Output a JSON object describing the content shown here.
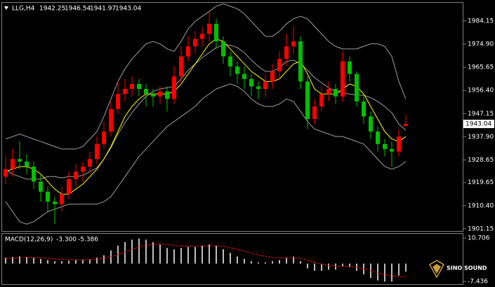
{
  "chart_data": [
    {
      "type": "candlestick",
      "title": "LLG,H4",
      "up_color": "#ff0000",
      "down_color": "#00c000",
      "ylim": [
        1900.0,
        1991.4
      ],
      "yticks": [
        1984.15,
        {
          "value": 1974.9,
          "label": "1974.90"
        },
        {
          "value": 1965.65,
          "label": "1965.65"
        },
        {
          "value": 1956.4,
          "label": "1956.40"
        },
        {
          "value": 1947.15,
          "label": "1947.15"
        },
        {
          "value": 1937.9,
          "label": "1937.90"
        },
        {
          "value": 1928.65,
          "label": "1928.65"
        },
        {
          "value": 1919.65,
          "label": "1919.65"
        },
        {
          "value": 1910.4,
          "label": "1910.40"
        },
        {
          "value": 1901.15,
          "label": "1901.15"
        }
      ],
      "open": [
        1922,
        1925,
        1929,
        1928,
        1926,
        1920,
        1916,
        1912,
        1911,
        1915,
        1921,
        1924,
        1926,
        1929,
        1935,
        1940,
        1949,
        1955,
        1957,
        1959,
        1957,
        1955,
        1954,
        1956,
        1953,
        1962,
        1970,
        1974,
        1977,
        1979,
        1983,
        1976,
        1970,
        1966,
        1963,
        1961,
        1958,
        1957,
        1960,
        1964,
        1969,
        1974,
        1976,
        1960,
        1945,
        1950,
        1955,
        1957,
        1954,
        1968,
        1963,
        1952,
        1946,
        1940,
        1935,
        1933,
        1932,
        1942.25
      ],
      "high": [
        1930,
        1933,
        1936,
        1931,
        1928,
        1923,
        1918,
        1914,
        1918,
        1924,
        1927,
        1928,
        1932,
        1938,
        1944,
        1952,
        1960,
        1961,
        1962,
        1961,
        1959,
        1957,
        1958,
        1958,
        1966,
        1974,
        1978,
        1980,
        1982,
        1988,
        1985,
        1978,
        1972,
        1968,
        1966,
        1963,
        1960,
        1963,
        1967,
        1972,
        1979,
        1982,
        1978,
        1962,
        1953,
        1958,
        1960,
        1959,
        1972,
        1970,
        1964,
        1954,
        1948,
        1942,
        1937,
        1936,
        1941,
        1946.54
      ],
      "low": [
        1919,
        1922,
        1925,
        1923,
        1917,
        1912,
        1908,
        1903,
        1908,
        1913,
        1918,
        1920,
        1923,
        1927,
        1933,
        1938,
        1947,
        1952,
        1954,
        1954,
        1950,
        1950,
        1951,
        1948,
        1951,
        1959,
        1968,
        1971,
        1974,
        1976,
        1973,
        1967,
        1962,
        1959,
        1957,
        1954,
        1953,
        1954,
        1957,
        1961,
        1966,
        1971,
        1957,
        1941,
        1943,
        1948,
        1952,
        1951,
        1952,
        1960,
        1950,
        1943,
        1937,
        1932,
        1930,
        1926,
        1930,
        1941.97
      ],
      "close": [
        1925,
        1929,
        1928,
        1926,
        1920,
        1916,
        1912,
        1911,
        1915,
        1921,
        1924,
        1926,
        1929,
        1935,
        1940,
        1949,
        1955,
        1957,
        1959,
        1957,
        1955,
        1954,
        1956,
        1953,
        1962,
        1970,
        1974,
        1977,
        1979,
        1983,
        1976,
        1970,
        1966,
        1963,
        1961,
        1958,
        1957,
        1960,
        1964,
        1969,
        1974,
        1976,
        1960,
        1945,
        1950,
        1955,
        1957,
        1954,
        1968,
        1963,
        1952,
        1946,
        1940,
        1935,
        1933,
        1932,
        1938,
        1943.04
      ],
      "series": [
        {
          "color": "#a0a0a0",
          "values": [
            1937,
            1938,
            1939,
            1938,
            1937,
            1936,
            1935,
            1934,
            1933,
            1933,
            1933,
            1934,
            1937,
            1940,
            1946,
            1953,
            1960,
            1965,
            1969,
            1972,
            1975,
            1976,
            1975,
            1973,
            1972,
            1976,
            1981,
            1984,
            1986,
            1988,
            1990,
            1991,
            1990,
            1989,
            1987,
            1984,
            1981,
            1978,
            1978,
            1980,
            1983,
            1985,
            1986,
            1985,
            1982,
            1979,
            1976,
            1974,
            1973,
            1973,
            1973,
            1974,
            1975,
            1975,
            1974,
            1970,
            1960,
            1953
          ]
        },
        {
          "color": "#a0a0a0",
          "values": [
            1925,
            1923,
            1922,
            1921,
            1921,
            1921,
            1922,
            1922,
            1921.5,
            1922,
            1922,
            1922.5,
            1924,
            1925.5,
            1929,
            1933.5,
            1939,
            1943.5,
            1947.5,
            1951,
            1954,
            1956,
            1957,
            1957.5,
            1958,
            1961,
            1964.5,
            1967,
            1969.5,
            1971.5,
            1973.5,
            1974.5,
            1974.5,
            1973.5,
            1971.5,
            1968.5,
            1966,
            1964,
            1964,
            1965.5,
            1968,
            1968.5,
            1967,
            1964.5,
            1961.5,
            1959.5,
            1957.5,
            1956,
            1955.5,
            1955,
            1954.5,
            1954.5,
            1953.5,
            1952,
            1950,
            1947.5,
            1943,
            1940.5
          ]
        },
        {
          "color": "#a0a0a0",
          "values": [
            1912,
            1908,
            1904,
            1903,
            1904,
            1906,
            1908,
            1909,
            1910,
            1911,
            1911,
            1911,
            1911,
            1911,
            1912,
            1914,
            1918,
            1922,
            1926,
            1930,
            1933,
            1936,
            1939,
            1942,
            1944,
            1946,
            1948,
            1950,
            1953,
            1955,
            1957,
            1958,
            1959,
            1958,
            1956,
            1953,
            1951,
            1950,
            1950,
            1951,
            1953,
            1952,
            1948,
            1944,
            1941,
            1940,
            1939,
            1938,
            1938,
            1937,
            1936,
            1935,
            1932,
            1929,
            1926,
            1925,
            1926,
            1928
          ]
        },
        {
          "color": "#ffff00",
          "values": [
            1924,
            1925,
            1926,
            1926,
            1925,
            1923,
            1920,
            1917,
            1915,
            1915,
            1917,
            1919,
            1922,
            1925,
            1929,
            1934,
            1940,
            1946,
            1950,
            1953,
            1955,
            1955,
            1955,
            1955,
            1956,
            1959,
            1963,
            1967,
            1971,
            1975,
            1977,
            1976,
            1973,
            1970,
            1967,
            1964,
            1962,
            1960,
            1960,
            1961,
            1964,
            1967,
            1968,
            1963,
            1957,
            1955,
            1955,
            1955,
            1957,
            1959,
            1958,
            1955,
            1950,
            1945,
            1940,
            1937,
            1936,
            1938
          ]
        }
      ],
      "watermark": "SINO SOUND"
    },
    {
      "type": "macd",
      "title": "MACD(12,26,9)",
      "ylim": [
        -8.31,
        12.46
      ],
      "yticks": [
        10.706,
        -7.436
      ],
      "series": [
        {
          "color": "#ffffff",
          "values": [
            2.5,
            2.8,
            3.0,
            2.8,
            2.5,
            2.0,
            1.5,
            1.0,
            1.0,
            1.2,
            1.5,
            1.6,
            1.8,
            2.5,
            3.5,
            5.5,
            7.5,
            9.0,
            10.0,
            10.5,
            10.0,
            9.0,
            8.0,
            6.5,
            6.0,
            6.5,
            7.0,
            7.0,
            7.5,
            8.0,
            7.5,
            6.0,
            4.5,
            3.0,
            2.0,
            1.0,
            0.5,
            0.5,
            1.0,
            1.5,
            2.5,
            3.0,
            1.0,
            -2.0,
            -3.0,
            -3.0,
            -2.5,
            -2.5,
            -1.0,
            -1.5,
            -3.0,
            -4.5,
            -6.0,
            -7.0,
            -7.5,
            -7.5,
            -5.0,
            -3.3
          ],
          "value_labels": [
            null,
            null,
            null,
            null,
            null,
            null,
            null,
            null,
            null,
            null,
            null,
            null,
            null,
            null,
            null,
            null,
            null,
            null,
            null,
            null,
            null,
            null,
            null,
            null,
            null,
            null,
            null,
            null,
            null,
            null,
            null,
            null,
            null,
            null,
            null,
            null,
            null,
            null,
            null,
            null,
            null,
            null,
            null,
            null,
            null,
            null,
            null,
            null,
            null,
            null,
            null,
            null,
            null,
            null,
            null,
            null,
            null,
            "-3.300"
          ]
        },
        {
          "color": "#ff0000",
          "values": [
            2.0,
            2.2,
            2.4,
            2.6,
            2.6,
            2.5,
            2.3,
            2.0,
            1.8,
            1.6,
            1.6,
            1.6,
            1.7,
            1.9,
            2.2,
            2.9,
            3.8,
            4.9,
            6.0,
            7.0,
            7.7,
            8.1,
            8.2,
            8.0,
            7.6,
            7.4,
            7.3,
            7.3,
            7.3,
            7.5,
            7.5,
            7.2,
            6.7,
            6.0,
            5.2,
            4.4,
            3.6,
            3.0,
            2.6,
            2.4,
            2.4,
            2.5,
            2.2,
            1.4,
            0.5,
            -0.2,
            -0.7,
            -1.1,
            -1.1,
            -1.2,
            -1.6,
            -2.2,
            -3.0,
            -3.8,
            -4.6,
            -5.2,
            -5.4,
            -5.386
          ]
        }
      ]
    }
  ]
}
